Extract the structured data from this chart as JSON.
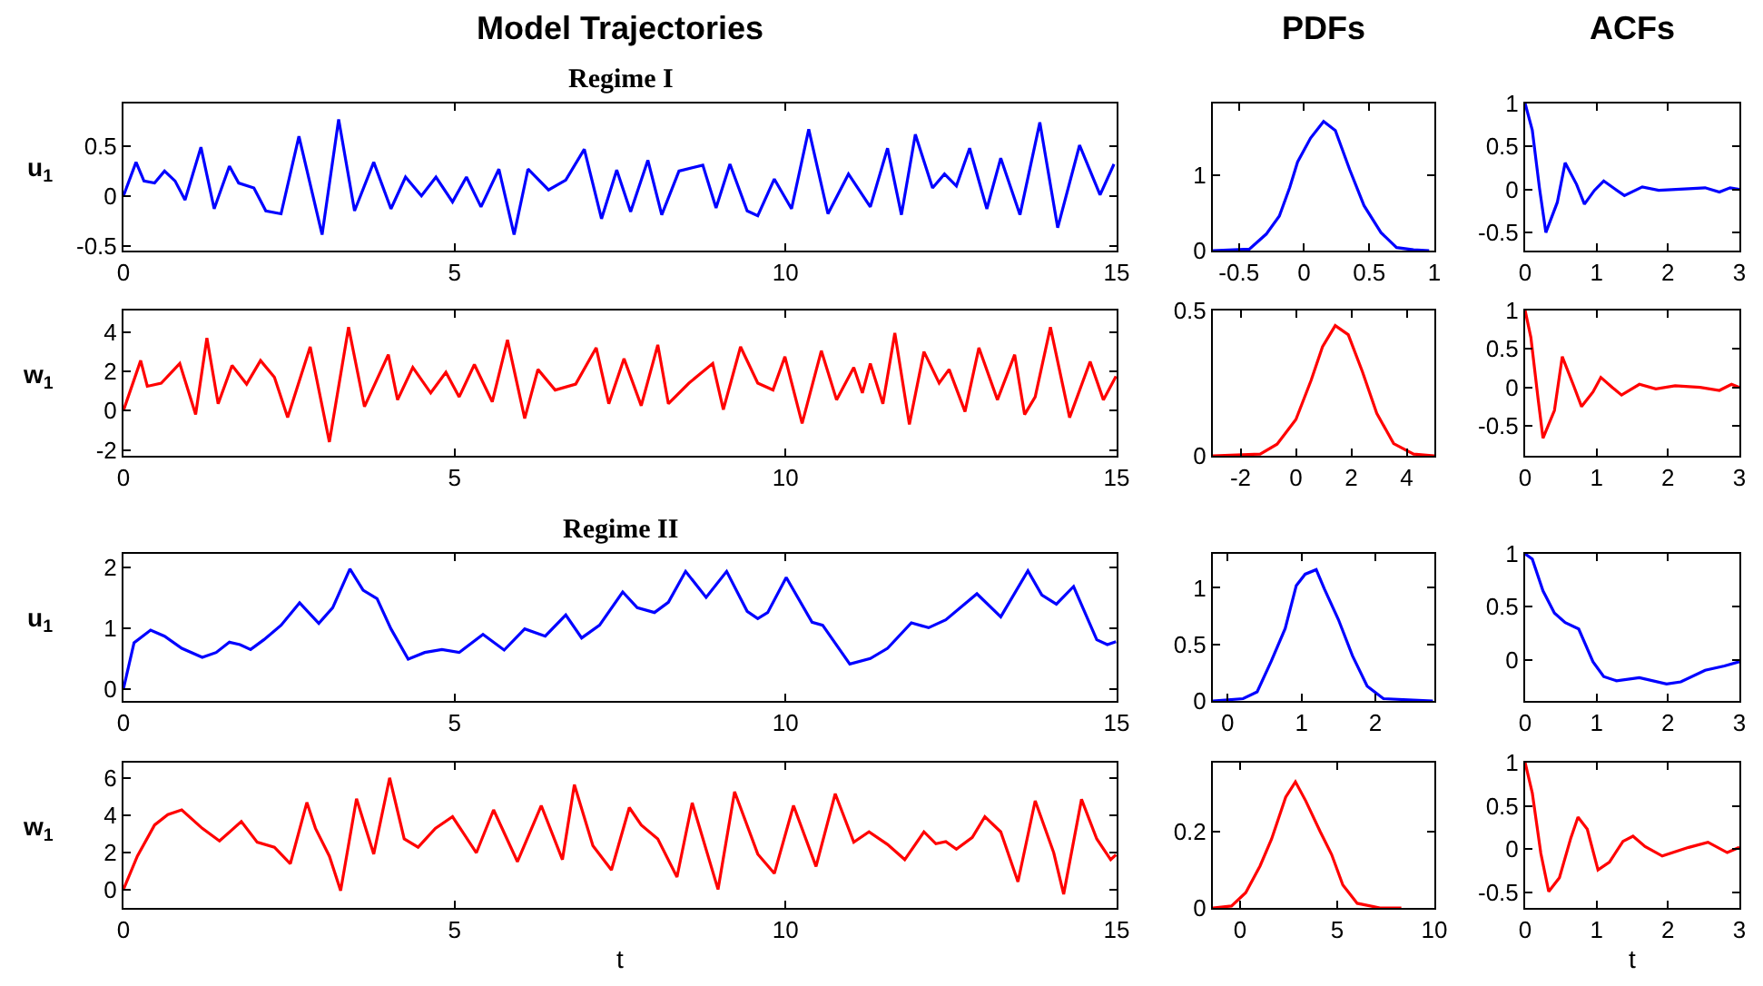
{
  "chart_data": [
    {
      "type": "line",
      "title": "Model Trajectories",
      "subtitle": "Regime I",
      "ylabel": "u$_{1}$",
      "xlim": [
        0,
        15
      ],
      "xticks": [
        0,
        5,
        10,
        15
      ],
      "ylim": [
        -0.55,
        0.93
      ],
      "yticks": [
        -0.5,
        0,
        0.5
      ],
      "x": [
        0,
        0.19,
        0.31,
        0.47,
        0.62,
        0.78,
        0.93,
        1.17,
        1.37,
        1.6,
        1.74,
        1.97,
        2.15,
        2.38,
        2.65,
        3.0,
        3.25,
        3.49,
        3.78,
        4.04,
        4.26,
        4.5,
        4.72,
        4.97,
        5.18,
        5.4,
        5.67,
        5.9,
        6.11,
        6.42,
        6.68,
        6.96,
        7.22,
        7.45,
        7.66,
        7.92,
        8.13,
        8.39,
        8.75,
        8.95,
        9.16,
        9.42,
        9.58,
        9.83,
        10.09,
        10.35,
        10.64,
        10.95,
        11.28,
        11.54,
        11.75,
        11.96,
        12.22,
        12.4,
        12.58,
        12.78,
        13.04,
        13.25,
        13.54,
        13.84,
        14.11,
        14.44,
        14.75,
        14.96
      ],
      "series": [
        {
          "color": "#0000ff",
          "values": [
            0,
            0.34,
            0.15,
            0.13,
            0.25,
            0.15,
            -0.04,
            0.49,
            -0.13,
            0.3,
            0.13,
            0.08,
            -0.15,
            -0.18,
            0.6,
            -0.39,
            0.77,
            -0.15,
            0.34,
            -0.13,
            0.19,
            0,
            0.19,
            -0.06,
            0.19,
            -0.11,
            0.27,
            -0.39,
            0.27,
            0.06,
            0.16,
            0.47,
            -0.23,
            0.26,
            -0.16,
            0.36,
            -0.19,
            0.25,
            0.31,
            -0.12,
            0.32,
            -0.15,
            -0.2,
            0.17,
            -0.13,
            0.67,
            -0.18,
            0.22,
            -0.11,
            0.48,
            -0.19,
            0.62,
            0.08,
            0.22,
            0.1,
            0.48,
            -0.13,
            0.38,
            -0.19,
            0.74,
            -0.32,
            0.51,
            0.01,
            0.32
          ]
        }
      ]
    },
    {
      "type": "line",
      "title": "PDFs",
      "xlim": [
        -0.7,
        1
      ],
      "xticks": [
        -0.5,
        0,
        0.5,
        1
      ],
      "ylim": [
        0,
        1.96
      ],
      "yticks": [
        0,
        1
      ],
      "x": [
        -0.7,
        -0.42,
        -0.29,
        -0.19,
        -0.11,
        -0.05,
        0.05,
        0.15,
        0.24,
        0.35,
        0.46,
        0.59,
        0.71,
        0.84,
        0.96
      ],
      "series": [
        {
          "color": "#0000ff",
          "values": [
            0,
            0.02,
            0.22,
            0.46,
            0.84,
            1.18,
            1.5,
            1.72,
            1.6,
            1.08,
            0.6,
            0.24,
            0.04,
            0.01,
            0
          ]
        }
      ]
    },
    {
      "type": "line",
      "title": "ACFs",
      "xlim": [
        0,
        3
      ],
      "xticks": [
        0,
        1,
        2,
        3
      ],
      "ylim": [
        -0.71,
        1
      ],
      "yticks": [
        -0.5,
        0,
        0.5,
        1
      ],
      "x": [
        0,
        0.1,
        0.2,
        0.29,
        0.45,
        0.56,
        0.72,
        0.83,
        0.97,
        1.1,
        1.25,
        1.39,
        1.64,
        1.87,
        2.29,
        2.52,
        2.72,
        2.87,
        3
      ],
      "series": [
        {
          "color": "#0000ff",
          "values": [
            1,
            0.69,
            0.02,
            -0.5,
            -0.15,
            0.31,
            0.06,
            -0.17,
            -0.01,
            0.1,
            0.01,
            -0.07,
            0.03,
            -0.01,
            0.01,
            0.02,
            -0.03,
            0.02,
            0
          ]
        }
      ]
    },
    {
      "type": "line",
      "ylabel": "w$_{1}$",
      "xlim": [
        0,
        15
      ],
      "xticks": [
        0,
        5,
        10,
        15
      ],
      "ylim": [
        -2.3,
        5.1
      ],
      "yticks": [
        -2,
        0,
        2,
        4
      ],
      "x": [
        0,
        0.26,
        0.36,
        0.57,
        0.85,
        1.09,
        1.26,
        1.43,
        1.64,
        1.86,
        2.07,
        2.28,
        2.48,
        2.82,
        3.11,
        3.4,
        3.64,
        4.0,
        4.14,
        4.37,
        4.64,
        4.87,
        5.07,
        5.3,
        5.57,
        5.8,
        6.06,
        6.26,
        6.52,
        6.83,
        7.14,
        7.33,
        7.56,
        7.82,
        8.07,
        8.23,
        8.54,
        8.9,
        9.06,
        9.32,
        9.58,
        9.81,
        9.99,
        10.25,
        10.54,
        10.77,
        11.03,
        11.16,
        11.28,
        11.47,
        11.65,
        11.87,
        12.09,
        12.32,
        12.47,
        12.71,
        12.92,
        13.2,
        13.46,
        13.61,
        13.77,
        14.0,
        14.29,
        14.6,
        14.8,
        14.99
      ],
      "series": [
        {
          "color": "#ff0000",
          "values": [
            0,
            2.55,
            1.24,
            1.4,
            2.4,
            -0.2,
            3.7,
            0.35,
            2.3,
            1.35,
            2.55,
            1.7,
            -0.35,
            3.25,
            -1.6,
            4.25,
            0.2,
            2.85,
            0.55,
            2.2,
            0.9,
            1.95,
            0.7,
            2.35,
            0.45,
            3.6,
            -0.4,
            2.1,
            1.05,
            1.35,
            3.2,
            0.35,
            2.65,
            0.25,
            3.35,
            0.35,
            1.4,
            2.4,
            0.05,
            3.25,
            1.4,
            1.05,
            2.75,
            -0.65,
            3.05,
            0.55,
            2.2,
            0.9,
            2.4,
            0.35,
            3.95,
            -0.7,
            3.0,
            1.4,
            2.1,
            -0.05,
            3.2,
            0.55,
            2.85,
            -0.2,
            0.7,
            4.25,
            -0.35,
            2.5,
            0.55,
            1.75
          ]
        }
      ]
    },
    {
      "type": "line",
      "xlim": [
        -3,
        5
      ],
      "xticks": [
        -2,
        0,
        2,
        4
      ],
      "ylim": [
        0,
        0.5
      ],
      "yticks": [
        0,
        0.5
      ],
      "x": [
        -3,
        -1.29,
        -0.68,
        0,
        0.55,
        0.96,
        1.42,
        1.89,
        2.4,
        2.92,
        3.53,
        4.25,
        5
      ],
      "series": [
        {
          "color": "#ff0000",
          "values": [
            0,
            0.006,
            0.04,
            0.125,
            0.26,
            0.375,
            0.448,
            0.417,
            0.29,
            0.146,
            0.042,
            0.006,
            0
          ]
        }
      ]
    },
    {
      "type": "line",
      "xlim": [
        0,
        3
      ],
      "xticks": [
        0,
        1,
        2,
        3
      ],
      "ylim": [
        -0.89,
        1
      ],
      "yticks": [
        -0.5,
        0,
        0.5,
        1
      ],
      "x": [
        0,
        0.08,
        0.18,
        0.25,
        0.41,
        0.52,
        0.68,
        0.79,
        0.95,
        1.06,
        1.22,
        1.35,
        1.6,
        1.83,
        2.1,
        2.45,
        2.72,
        2.89,
        3
      ],
      "series": [
        {
          "color": "#ff0000",
          "values": [
            1,
            0.65,
            -0.14,
            -0.66,
            -0.3,
            0.4,
            0.02,
            -0.25,
            -0.06,
            0.13,
            0,
            -0.1,
            0.04,
            -0.02,
            0.02,
            0,
            -0.04,
            0.04,
            0
          ]
        }
      ]
    },
    {
      "type": "line",
      "subtitle": "Regime II",
      "ylabel": "u$_{1}$",
      "xlim": [
        0,
        15
      ],
      "xticks": [
        0,
        5,
        10,
        15
      ],
      "ylim": [
        -0.2,
        2.23
      ],
      "yticks": [
        0,
        1,
        2
      ],
      "x": [
        0,
        0.16,
        0.41,
        0.62,
        0.88,
        1.19,
        1.4,
        1.6,
        1.76,
        1.92,
        2.12,
        2.38,
        2.66,
        2.95,
        3.16,
        3.42,
        3.62,
        3.83,
        4.04,
        4.3,
        4.55,
        4.81,
        5.07,
        5.43,
        5.75,
        6.06,
        6.37,
        6.68,
        6.92,
        7.19,
        7.54,
        7.76,
        8.02,
        8.23,
        8.49,
        8.8,
        9.11,
        9.42,
        9.58,
        9.73,
        10.01,
        10.4,
        10.56,
        10.97,
        11.28,
        11.54,
        11.9,
        12.16,
        12.42,
        12.89,
        13.25,
        13.66,
        13.87,
        14.09,
        14.35,
        14.7,
        14.86,
        14.99
      ],
      "series": [
        {
          "color": "#0000ff",
          "values": [
            0,
            0.76,
            0.97,
            0.87,
            0.67,
            0.52,
            0.6,
            0.77,
            0.73,
            0.65,
            0.81,
            1.05,
            1.42,
            1.08,
            1.34,
            1.98,
            1.63,
            1.49,
            0.99,
            0.49,
            0.6,
            0.65,
            0.6,
            0.9,
            0.64,
            0.99,
            0.87,
            1.22,
            0.84,
            1.05,
            1.6,
            1.34,
            1.26,
            1.43,
            1.94,
            1.51,
            1.94,
            1.28,
            1.16,
            1.26,
            1.84,
            1.1,
            1.05,
            0.41,
            0.5,
            0.67,
            1.09,
            1.01,
            1.14,
            1.57,
            1.19,
            1.95,
            1.55,
            1.4,
            1.69,
            0.81,
            0.73,
            0.78
          ]
        }
      ]
    },
    {
      "type": "line",
      "xlim": [
        -0.2,
        2.8
      ],
      "xticks": [
        0,
        1,
        2
      ],
      "ylim": [
        0,
        1.3
      ],
      "yticks": [
        0,
        0.5,
        1
      ],
      "x": [
        -0.2,
        0.21,
        0.4,
        0.59,
        0.78,
        0.93,
        1.05,
        1.2,
        1.31,
        1.5,
        1.69,
        1.89,
        2.11,
        2.78
      ],
      "series": [
        {
          "color": "#0000ff",
          "values": [
            0,
            0.02,
            0.08,
            0.35,
            0.64,
            1.02,
            1.12,
            1.16,
            0.99,
            0.72,
            0.4,
            0.13,
            0.02,
            0
          ]
        }
      ]
    },
    {
      "type": "line",
      "xlim": [
        0,
        3
      ],
      "xticks": [
        0,
        1,
        2,
        3
      ],
      "ylim": [
        -0.39,
        1
      ],
      "yticks": [
        0,
        0.5,
        1
      ],
      "x": [
        0,
        0.1,
        0.25,
        0.41,
        0.56,
        0.75,
        0.95,
        1.1,
        1.28,
        1.6,
        1.98,
        2.18,
        2.52,
        2.79,
        3
      ],
      "series": [
        {
          "color": "#0000ff",
          "values": [
            1,
            0.95,
            0.65,
            0.44,
            0.35,
            0.29,
            -0.02,
            -0.16,
            -0.2,
            -0.17,
            -0.23,
            -0.21,
            -0.1,
            -0.06,
            -0.02
          ]
        }
      ]
    },
    {
      "type": "line",
      "xlabel": "t",
      "ylabel": "w$_{1}$",
      "xlim": [
        0,
        15
      ],
      "xticks": [
        0,
        5,
        10,
        15
      ],
      "ylim": [
        -1,
        6.85
      ],
      "yticks": [
        0,
        2,
        4,
        6
      ],
      "x": [
        0,
        0.21,
        0.47,
        0.67,
        0.88,
        1.19,
        1.45,
        1.78,
        2.02,
        2.28,
        2.52,
        2.77,
        2.9,
        3.11,
        3.28,
        3.52,
        3.78,
        4.02,
        4.24,
        4.45,
        4.71,
        4.97,
        5.33,
        5.59,
        5.95,
        6.31,
        6.63,
        6.81,
        7.09,
        7.37,
        7.64,
        7.82,
        8.07,
        8.36,
        8.59,
        8.98,
        9.23,
        9.58,
        9.83,
        10.12,
        10.46,
        10.75,
        11.03,
        11.26,
        11.54,
        11.8,
        12.09,
        12.27,
        12.42,
        12.58,
        12.82,
        13.01,
        13.25,
        13.51,
        13.77,
        14.05,
        14.2,
        14.47,
        14.7,
        14.91,
        14.99
      ],
      "series": [
        {
          "color": "#ff0000",
          "values": [
            0,
            1.8,
            3.48,
            4.04,
            4.3,
            3.3,
            2.62,
            3.67,
            2.55,
            2.28,
            1.39,
            4.7,
            3.3,
            1.8,
            -0.07,
            4.9,
            1.91,
            6.03,
            2.73,
            2.28,
            3.3,
            3.93,
            1.98,
            4.3,
            1.5,
            4.53,
            1.61,
            5.66,
            2.36,
            1.05,
            4.42,
            3.48,
            2.73,
            0.67,
            4.68,
            0,
            5.28,
            1.91,
            0.86,
            4.53,
            1.24,
            5.17,
            2.55,
            3.11,
            2.43,
            1.61,
            3.11,
            2.47,
            2.58,
            2.17,
            2.81,
            3.93,
            3.11,
            0.41,
            4.79,
            1.98,
            -0.26,
            4.87,
            2.73,
            1.61,
            1.87
          ]
        }
      ]
    },
    {
      "type": "line",
      "xlim": [
        -1.4,
        10
      ],
      "xticks": [
        0,
        5,
        10
      ],
      "ylim": [
        0,
        0.38
      ],
      "yticks": [
        0,
        0.2
      ],
      "x": [
        -1.4,
        -0.44,
        0.29,
        1.03,
        1.62,
        2.35,
        2.85,
        3.38,
        4.12,
        4.71,
        5.29,
        6.03,
        7.2,
        8.3
      ],
      "series": [
        {
          "color": "#ff0000",
          "values": [
            0,
            0.005,
            0.04,
            0.11,
            0.18,
            0.29,
            0.33,
            0.28,
            0.2,
            0.14,
            0.06,
            0.012,
            0,
            0
          ]
        }
      ]
    },
    {
      "type": "line",
      "xlabel": "t",
      "xlim": [
        0,
        3
      ],
      "xticks": [
        0,
        1,
        2,
        3
      ],
      "ylim": [
        -0.68,
        1
      ],
      "yticks": [
        -0.5,
        0,
        0.5,
        1
      ],
      "x": [
        0,
        0.1,
        0.22,
        0.33,
        0.48,
        0.64,
        0.74,
        0.87,
        1.02,
        1.18,
        1.37,
        1.51,
        1.68,
        1.92,
        2.29,
        2.56,
        2.83,
        3
      ],
      "series": [
        {
          "color": "#ff0000",
          "values": [
            1,
            0.65,
            -0.05,
            -0.49,
            -0.33,
            0.13,
            0.37,
            0.23,
            -0.24,
            -0.15,
            0.09,
            0.15,
            0.03,
            -0.08,
            0.02,
            0.08,
            -0.04,
            0.02
          ]
        }
      ]
    }
  ]
}
